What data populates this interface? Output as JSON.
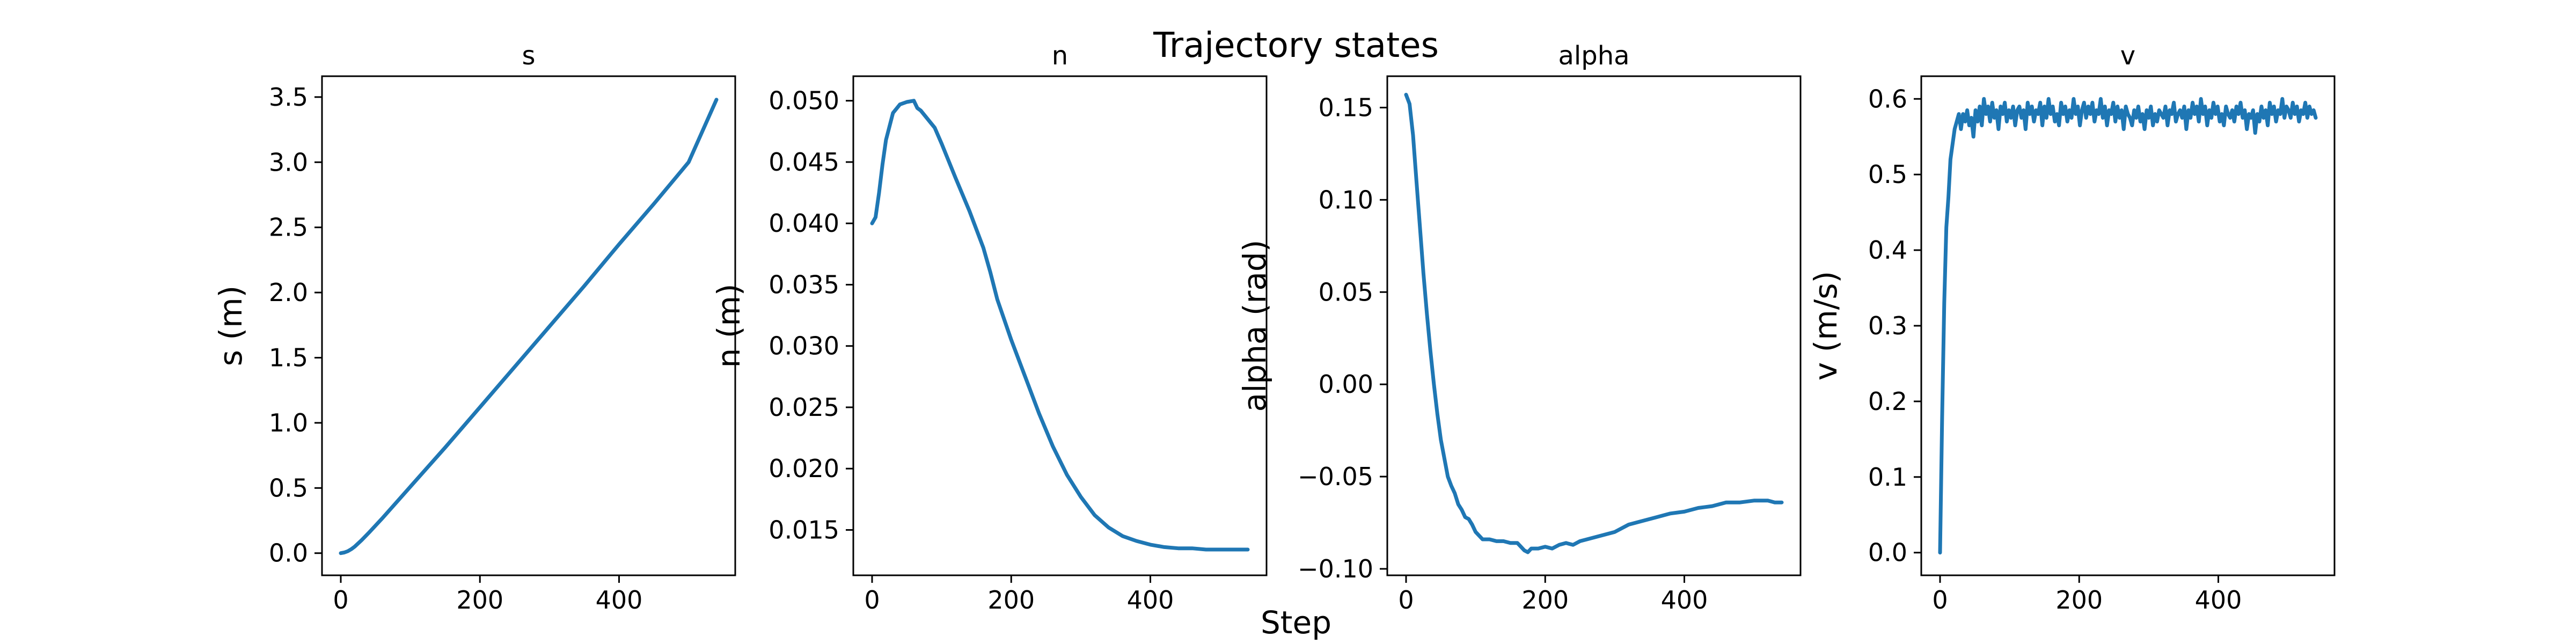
{
  "figure": {
    "suptitle": "Trajectory states",
    "xlabel": "Step"
  },
  "chart_data": [
    {
      "type": "line",
      "title": "s",
      "xlabel": "Step",
      "ylabel": "s (m)",
      "xlim": [
        -27,
        567
      ],
      "ylim": [
        -0.17,
        3.66
      ],
      "xticks": [
        0,
        200,
        400
      ],
      "yticks": [
        0.0,
        0.5,
        1.0,
        1.5,
        2.0,
        2.5,
        3.0,
        3.5
      ],
      "ytick_labels": [
        "0.0",
        "0.5",
        "1.0",
        "1.5",
        "2.0",
        "2.5",
        "3.0",
        "3.5"
      ],
      "grid": false,
      "color": "#1f77b4",
      "series": [
        {
          "x": [
            0,
            5,
            10,
            15,
            20,
            30,
            40,
            60,
            100,
            150,
            200,
            250,
            300,
            350,
            400,
            450,
            500,
            540
          ],
          "y": [
            0.0,
            0.005,
            0.015,
            0.03,
            0.05,
            0.1,
            0.155,
            0.27,
            0.51,
            0.81,
            1.12,
            1.43,
            1.74,
            2.05,
            2.37,
            2.68,
            3.0,
            3.48
          ]
        }
      ]
    },
    {
      "type": "line",
      "title": "n",
      "xlabel": "Step",
      "ylabel": "n (m)",
      "xlim": [
        -27,
        567
      ],
      "ylim": [
        0.0113,
        0.052
      ],
      "xticks": [
        0,
        200,
        400
      ],
      "yticks": [
        0.015,
        0.02,
        0.025,
        0.03,
        0.035,
        0.04,
        0.045,
        0.05
      ],
      "ytick_labels": [
        "0.015",
        "0.020",
        "0.025",
        "0.030",
        "0.035",
        "0.040",
        "0.045",
        "0.050"
      ],
      "grid": false,
      "color": "#1f77b4",
      "series": [
        {
          "x": [
            0,
            5,
            10,
            15,
            20,
            30,
            40,
            50,
            60,
            65,
            70,
            80,
            90,
            100,
            120,
            140,
            160,
            170,
            180,
            200,
            220,
            240,
            260,
            280,
            300,
            320,
            340,
            360,
            380,
            400,
            420,
            440,
            460,
            480,
            500,
            520,
            540
          ],
          "y": [
            0.04,
            0.0405,
            0.0425,
            0.0448,
            0.0468,
            0.049,
            0.0497,
            0.0499,
            0.05,
            0.0494,
            0.0492,
            0.0485,
            0.0478,
            0.0465,
            0.0437,
            0.041,
            0.038,
            0.036,
            0.0338,
            0.0305,
            0.0275,
            0.0245,
            0.0218,
            0.0195,
            0.0177,
            0.0162,
            0.0152,
            0.0145,
            0.0141,
            0.0138,
            0.0136,
            0.0135,
            0.0135,
            0.0134,
            0.0134,
            0.0134,
            0.0134
          ]
        }
      ]
    },
    {
      "type": "line",
      "title": "alpha",
      "xlabel": "Step",
      "ylabel": "alpha (rad)",
      "xlim": [
        -27,
        567
      ],
      "ylim": [
        -0.1035,
        0.167
      ],
      "xticks": [
        0,
        200,
        400
      ],
      "yticks": [
        -0.1,
        -0.05,
        0.0,
        0.05,
        0.1,
        0.15
      ],
      "ytick_labels": [
        "−0.10",
        "−0.05",
        "0.00",
        "0.05",
        "0.10",
        "0.15"
      ],
      "grid": false,
      "color": "#1f77b4",
      "series": [
        {
          "x": [
            0,
            5,
            10,
            15,
            20,
            25,
            30,
            35,
            40,
            45,
            50,
            55,
            60,
            65,
            70,
            75,
            80,
            85,
            90,
            95,
            100,
            110,
            120,
            130,
            140,
            150,
            160,
            165,
            170,
            175,
            180,
            190,
            200,
            210,
            220,
            230,
            240,
            250,
            260,
            280,
            300,
            320,
            340,
            360,
            380,
            400,
            420,
            440,
            460,
            480,
            500,
            520,
            530,
            540
          ],
          "y": [
            0.157,
            0.152,
            0.135,
            0.11,
            0.085,
            0.06,
            0.038,
            0.018,
            0.0,
            -0.016,
            -0.03,
            -0.04,
            -0.05,
            -0.055,
            -0.059,
            -0.065,
            -0.068,
            -0.072,
            -0.073,
            -0.076,
            -0.08,
            -0.084,
            -0.084,
            -0.085,
            -0.085,
            -0.086,
            -0.086,
            -0.088,
            -0.09,
            -0.091,
            -0.089,
            -0.089,
            -0.088,
            -0.089,
            -0.087,
            -0.086,
            -0.087,
            -0.085,
            -0.084,
            -0.082,
            -0.08,
            -0.076,
            -0.074,
            -0.072,
            -0.07,
            -0.069,
            -0.067,
            -0.066,
            -0.064,
            -0.064,
            -0.063,
            -0.063,
            -0.064,
            -0.064
          ]
        }
      ]
    },
    {
      "type": "line",
      "title": "v",
      "xlabel": "Step",
      "ylabel": "v (m/s)",
      "xlim": [
        -27,
        567
      ],
      "ylim": [
        -0.03,
        0.63
      ],
      "xticks": [
        0,
        200,
        400
      ],
      "yticks": [
        0.0,
        0.1,
        0.2,
        0.3,
        0.4,
        0.5,
        0.6
      ],
      "ytick_labels": [
        "0.0",
        "0.1",
        "0.2",
        "0.3",
        "0.4",
        "0.5",
        "0.6"
      ],
      "grid": false,
      "color": "#1f77b4",
      "series": [
        {
          "x": [
            0,
            3,
            6,
            9,
            12,
            15,
            18,
            21,
            24,
            27,
            30,
            33,
            36,
            39,
            42,
            45,
            48,
            51,
            54,
            57,
            60,
            63,
            66,
            69,
            72,
            75,
            78,
            81,
            84,
            87,
            90,
            93,
            96,
            99,
            102,
            105,
            108,
            111,
            114,
            117,
            120,
            123,
            126,
            129,
            132,
            135,
            138,
            141,
            144,
            147,
            150,
            153,
            156,
            159,
            162,
            165,
            168,
            171,
            174,
            177,
            180,
            183,
            186,
            189,
            192,
            195,
            198,
            201,
            204,
            207,
            210,
            213,
            216,
            219,
            222,
            225,
            228,
            231,
            234,
            237,
            240,
            243,
            246,
            249,
            252,
            255,
            258,
            261,
            264,
            267,
            270,
            273,
            276,
            279,
            282,
            285,
            288,
            291,
            294,
            297,
            300,
            303,
            306,
            309,
            312,
            315,
            318,
            321,
            324,
            327,
            330,
            333,
            336,
            339,
            342,
            345,
            348,
            351,
            354,
            357,
            360,
            363,
            366,
            369,
            372,
            375,
            378,
            381,
            384,
            387,
            390,
            393,
            396,
            399,
            402,
            405,
            408,
            411,
            414,
            417,
            420,
            423,
            426,
            429,
            432,
            435,
            438,
            441,
            444,
            447,
            450,
            453,
            456,
            459,
            462,
            465,
            468,
            471,
            474,
            477,
            480,
            483,
            486,
            489,
            492,
            495,
            498,
            501,
            504,
            507,
            510,
            513,
            516,
            519,
            522,
            525,
            528,
            531,
            534,
            537,
            540
          ],
          "y": [
            0.0,
            0.18,
            0.33,
            0.43,
            0.47,
            0.52,
            0.54,
            0.56,
            0.57,
            0.58,
            0.56,
            0.58,
            0.57,
            0.585,
            0.565,
            0.575,
            0.55,
            0.585,
            0.57,
            0.59,
            0.565,
            0.6,
            0.58,
            0.59,
            0.57,
            0.595,
            0.575,
            0.585,
            0.56,
            0.59,
            0.58,
            0.595,
            0.57,
            0.585,
            0.575,
            0.59,
            0.565,
            0.585,
            0.59,
            0.575,
            0.585,
            0.56,
            0.595,
            0.58,
            0.59,
            0.57,
            0.585,
            0.58,
            0.595,
            0.565,
            0.59,
            0.575,
            0.6,
            0.58,
            0.59,
            0.57,
            0.58,
            0.565,
            0.595,
            0.58,
            0.59,
            0.57,
            0.585,
            0.575,
            0.6,
            0.58,
            0.59,
            0.565,
            0.585,
            0.595,
            0.575,
            0.59,
            0.58,
            0.595,
            0.57,
            0.585,
            0.58,
            0.6,
            0.575,
            0.59,
            0.565,
            0.585,
            0.58,
            0.595,
            0.57,
            0.59,
            0.575,
            0.585,
            0.56,
            0.59,
            0.58,
            0.575,
            0.565,
            0.585,
            0.575,
            0.59,
            0.57,
            0.58,
            0.56,
            0.585,
            0.575,
            0.59,
            0.565,
            0.58,
            0.57,
            0.585,
            0.58,
            0.575,
            0.59,
            0.565,
            0.585,
            0.58,
            0.595,
            0.57,
            0.58,
            0.585,
            0.575,
            0.59,
            0.56,
            0.585,
            0.575,
            0.595,
            0.58,
            0.59,
            0.57,
            0.6,
            0.58,
            0.59,
            0.565,
            0.585,
            0.575,
            0.595,
            0.58,
            0.59,
            0.57,
            0.58,
            0.565,
            0.59,
            0.58,
            0.575,
            0.585,
            0.57,
            0.59,
            0.58,
            0.595,
            0.575,
            0.585,
            0.56,
            0.58,
            0.575,
            0.585,
            0.555,
            0.58,
            0.57,
            0.59,
            0.575,
            0.585,
            0.565,
            0.595,
            0.58,
            0.59,
            0.57,
            0.585,
            0.58,
            0.6,
            0.575,
            0.59,
            0.585,
            0.575,
            0.595,
            0.58,
            0.59,
            0.57,
            0.585,
            0.58,
            0.595,
            0.575,
            0.59,
            0.58,
            0.585,
            0.575
          ]
        }
      ]
    }
  ]
}
